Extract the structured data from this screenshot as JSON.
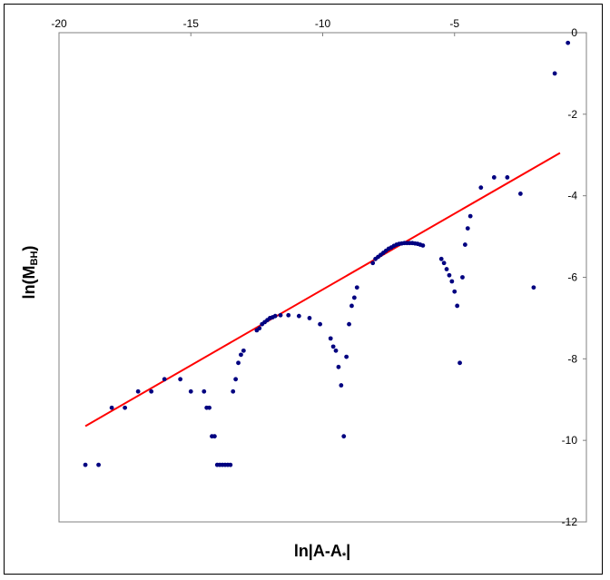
{
  "chart_data": {
    "type": "scatter",
    "title": "",
    "xlabel": "ln|A-A*|",
    "xlabel_parts": {
      "main": "ln|A-A",
      "sub": "*",
      "end": "|"
    },
    "ylabel": "ln(MBH)",
    "ylabel_parts": {
      "main": "ln(M",
      "sub": "BH",
      "end": ")"
    },
    "xlim": [
      -20,
      0
    ],
    "ylim": [
      -12,
      0
    ],
    "x_ticks": [
      -20,
      -15,
      -10,
      -5
    ],
    "x_tick_labels": [
      "-20",
      "-15",
      "-10",
      "-5"
    ],
    "y_ticks": [
      0,
      -2,
      -4,
      -6,
      -8,
      -10,
      -12
    ],
    "y_tick_labels": [
      "0",
      "-2",
      "-4",
      "-6",
      "-8",
      "-10",
      "-12"
    ],
    "x_axis_position": "top",
    "y_axis_position": "right",
    "grid": false,
    "legend": "none",
    "colors": {
      "points": "#000080",
      "fit_line": "#ff0000",
      "frame": "#000000",
      "background": "#ffffff"
    },
    "series": [
      {
        "kind": "scatter",
        "points": [
          [
            -19.0,
            -10.6
          ],
          [
            -18.5,
            -10.6
          ],
          [
            -18.0,
            -9.2
          ],
          [
            -17.5,
            -9.2
          ],
          [
            -17.0,
            -8.8
          ],
          [
            -16.5,
            -8.8
          ],
          [
            -16.0,
            -8.5
          ],
          [
            -15.4,
            -8.5
          ],
          [
            -15.0,
            -8.8
          ],
          [
            -14.5,
            -8.8
          ],
          [
            -14.4,
            -9.2
          ],
          [
            -14.3,
            -9.2
          ],
          [
            -14.2,
            -9.9
          ],
          [
            -14.1,
            -9.9
          ],
          [
            -14.0,
            -10.6
          ],
          [
            -13.9,
            -10.6
          ],
          [
            -13.8,
            -10.6
          ],
          [
            -13.7,
            -10.6
          ],
          [
            -13.6,
            -10.6
          ],
          [
            -13.5,
            -10.6
          ],
          [
            -13.4,
            -8.8
          ],
          [
            -13.3,
            -8.5
          ],
          [
            -13.2,
            -8.1
          ],
          [
            -13.1,
            -7.9
          ],
          [
            -13.0,
            -7.8
          ],
          [
            -12.5,
            -7.3
          ],
          [
            -12.4,
            -7.25
          ],
          [
            -12.3,
            -7.15
          ],
          [
            -12.2,
            -7.1
          ],
          [
            -12.1,
            -7.05
          ],
          [
            -12.0,
            -7.0
          ],
          [
            -11.9,
            -6.98
          ],
          [
            -11.8,
            -6.95
          ],
          [
            -11.6,
            -6.93
          ],
          [
            -11.3,
            -6.93
          ],
          [
            -10.9,
            -6.95
          ],
          [
            -10.5,
            -7.0
          ],
          [
            -10.1,
            -7.15
          ],
          [
            -9.7,
            -7.5
          ],
          [
            -9.6,
            -7.7
          ],
          [
            -9.5,
            -7.8
          ],
          [
            -9.4,
            -8.2
          ],
          [
            -9.3,
            -8.65
          ],
          [
            -9.2,
            -9.9
          ],
          [
            -9.1,
            -7.95
          ],
          [
            -9.0,
            -7.15
          ],
          [
            -8.9,
            -6.7
          ],
          [
            -8.8,
            -6.5
          ],
          [
            -8.7,
            -6.25
          ],
          [
            -8.1,
            -5.65
          ],
          [
            -8.0,
            -5.55
          ],
          [
            -7.9,
            -5.5
          ],
          [
            -7.8,
            -5.45
          ],
          [
            -7.7,
            -5.4
          ],
          [
            -7.6,
            -5.35
          ],
          [
            -7.5,
            -5.3
          ],
          [
            -7.4,
            -5.27
          ],
          [
            -7.3,
            -5.23
          ],
          [
            -7.2,
            -5.2
          ],
          [
            -7.1,
            -5.18
          ],
          [
            -7.0,
            -5.17
          ],
          [
            -6.9,
            -5.16
          ],
          [
            -6.8,
            -5.16
          ],
          [
            -6.7,
            -5.16
          ],
          [
            -6.6,
            -5.16
          ],
          [
            -6.5,
            -5.17
          ],
          [
            -6.4,
            -5.18
          ],
          [
            -6.3,
            -5.2
          ],
          [
            -6.2,
            -5.22
          ],
          [
            -5.5,
            -5.55
          ],
          [
            -5.4,
            -5.65
          ],
          [
            -5.3,
            -5.8
          ],
          [
            -5.2,
            -5.95
          ],
          [
            -5.1,
            -6.1
          ],
          [
            -5.0,
            -6.35
          ],
          [
            -4.9,
            -6.7
          ],
          [
            -4.8,
            -8.1
          ],
          [
            -4.7,
            -6.0
          ],
          [
            -4.6,
            -5.2
          ],
          [
            -4.5,
            -4.8
          ],
          [
            -4.4,
            -4.5
          ],
          [
            -4.0,
            -3.8
          ],
          [
            -3.5,
            -3.55
          ],
          [
            -3.0,
            -3.55
          ],
          [
            -2.5,
            -3.95
          ],
          [
            -2.0,
            -6.25
          ],
          [
            -1.2,
            -1.0
          ],
          [
            -0.7,
            -0.25
          ]
        ]
      },
      {
        "kind": "line",
        "points": [
          [
            -19.0,
            -9.65
          ],
          [
            -1.0,
            -2.95
          ]
        ]
      }
    ]
  }
}
